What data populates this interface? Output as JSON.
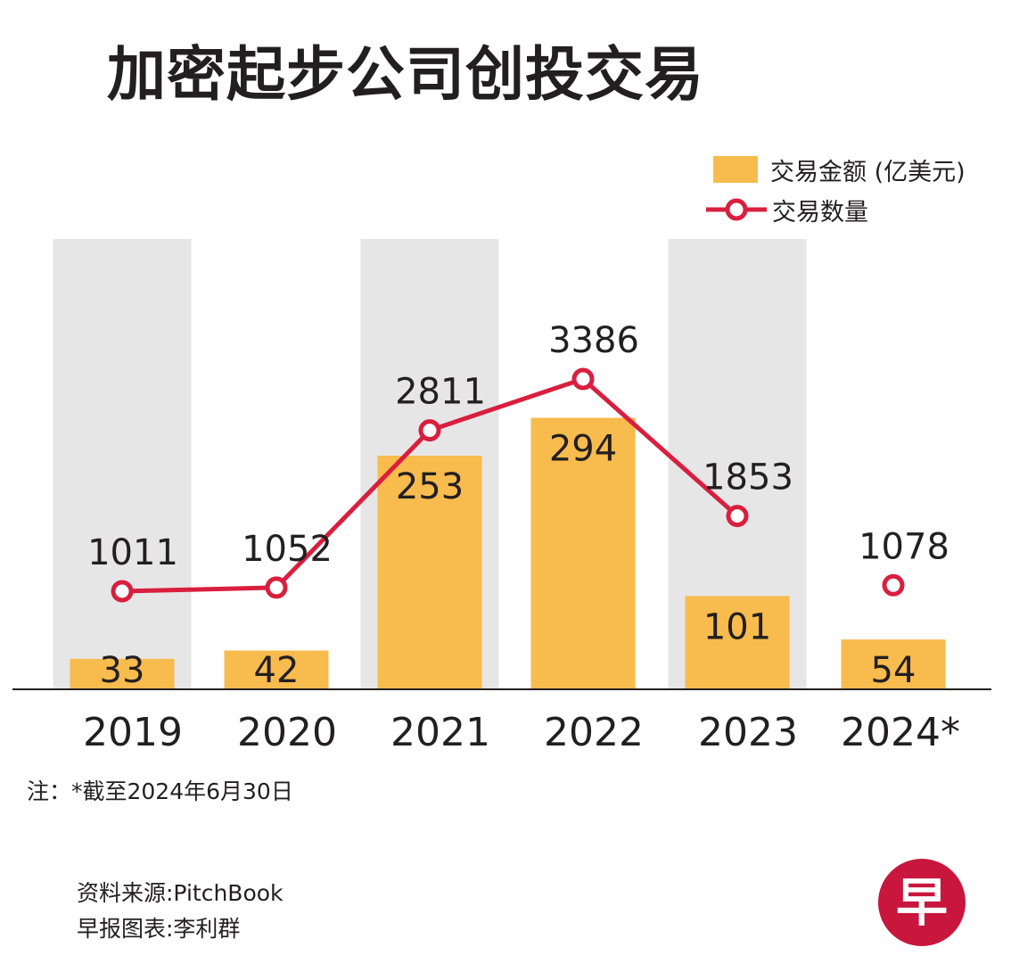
{
  "title": "加密起步公司创投交易",
  "legend": {
    "bar_label": "交易金额 (亿美元)",
    "line_label": "交易数量"
  },
  "note": "注：*截至2024年6月30日",
  "source": {
    "data_source": "资料来源:PitchBook",
    "chart_credit": "早报图表:李利群"
  },
  "logo": {
    "text": "早",
    "color": "#c8163c"
  },
  "colors": {
    "bar": "#f8bb4d",
    "line": "#d91f3e",
    "band": "#e7e6e6",
    "text": "#231f20"
  },
  "chart_data": {
    "type": "bar",
    "categories": [
      "2019",
      "2020",
      "2021",
      "2022",
      "2023",
      "2024*"
    ],
    "series": [
      {
        "name": "交易金额 (亿美元)",
        "type": "bar",
        "values": [
          33,
          42,
          253,
          294,
          101,
          54
        ]
      },
      {
        "name": "交易数量",
        "type": "line",
        "values": [
          1011,
          1052,
          2811,
          3386,
          1853,
          1078
        ],
        "connected": [
          true,
          true,
          true,
          true,
          true,
          false
        ]
      }
    ],
    "shaded_categories": [
      "2019",
      "2021",
      "2023"
    ],
    "grid": false,
    "legend_position": "top-right"
  }
}
